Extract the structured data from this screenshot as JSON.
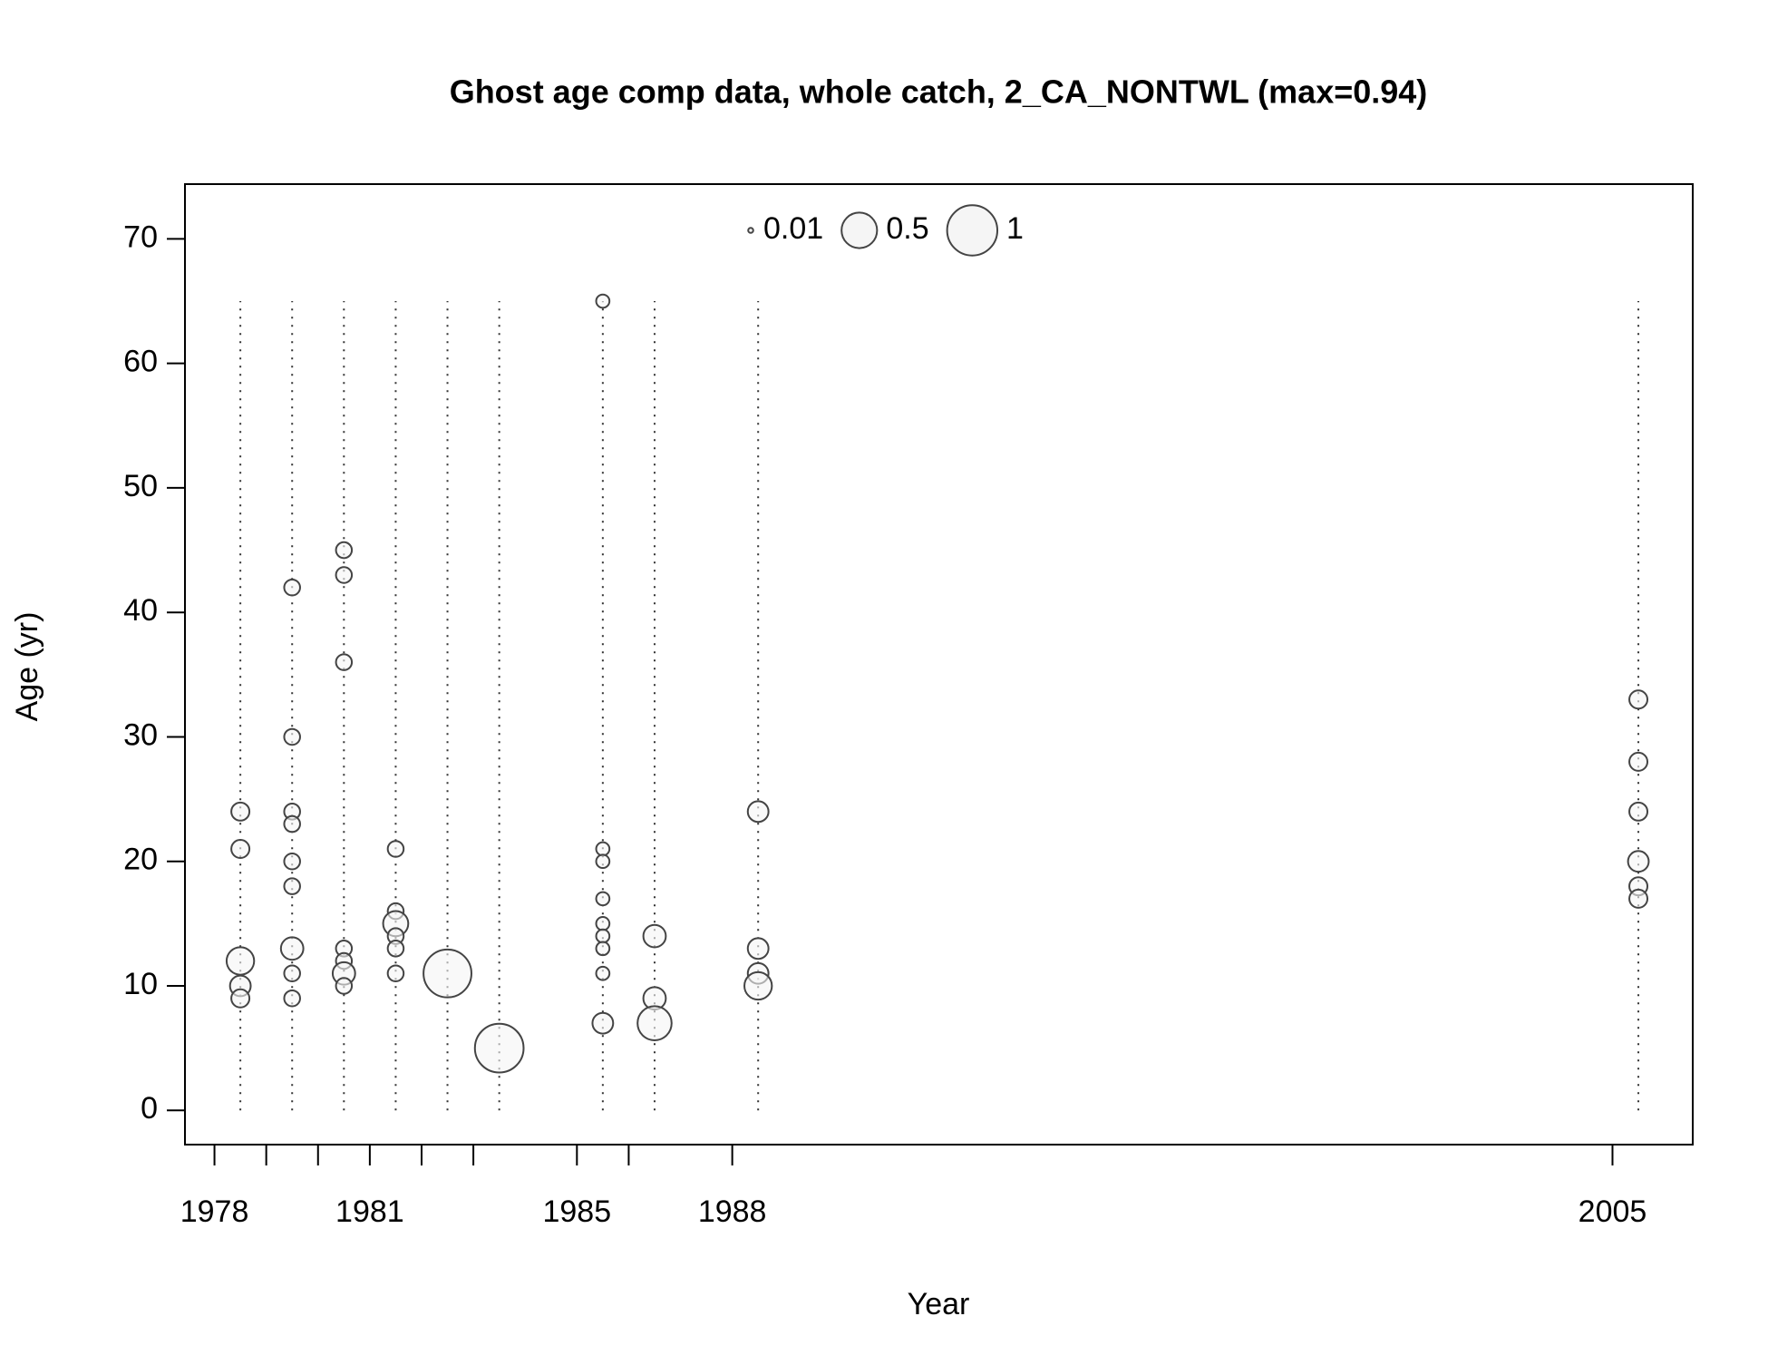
{
  "chart_data": {
    "type": "bubble",
    "title": "Ghost age comp data, whole catch, 2_CA_NONTWL (max=0.94)",
    "x_label": "Year",
    "y_label": "Age (yr)",
    "x": [
      1978.5,
      1978.5,
      1978.5,
      1978.5,
      1978.5,
      1979.5,
      1979.5,
      1979.5,
      1979.5,
      1979.5,
      1979.5,
      1979.5,
      1979.5,
      1979.5,
      1980.5,
      1980.5,
      1980.5,
      1980.5,
      1980.5,
      1980.5,
      1980.5,
      1981.5,
      1981.5,
      1981.5,
      1981.5,
      1981.5,
      1981.5,
      1982.5,
      1983.5,
      1985.5,
      1985.5,
      1985.5,
      1985.5,
      1985.5,
      1985.5,
      1985.5,
      1985.5,
      1985.5,
      1986.5,
      1986.5,
      1986.5,
      1988.5,
      1988.5,
      1988.5,
      1988.5,
      2005.5,
      2005.5,
      2005.5,
      2005.5,
      2005.5,
      2005.5
    ],
    "y": [
      24,
      21,
      12,
      10,
      9,
      42,
      30,
      24,
      23,
      20,
      18,
      13,
      11,
      9,
      45,
      43,
      36,
      13,
      12,
      11,
      10,
      21,
      16,
      15,
      14,
      13,
      11,
      11,
      5,
      65,
      21,
      20,
      17,
      15,
      14,
      13,
      11,
      7,
      14,
      9,
      7,
      24,
      13,
      11,
      10,
      33,
      28,
      24,
      20,
      18,
      17
    ],
    "sizes": [
      0.13,
      0.13,
      0.3,
      0.17,
      0.13,
      0.1,
      0.1,
      0.1,
      0.1,
      0.1,
      0.1,
      0.2,
      0.1,
      0.1,
      0.1,
      0.1,
      0.1,
      0.1,
      0.1,
      0.2,
      0.1,
      0.1,
      0.1,
      0.25,
      0.1,
      0.1,
      0.1,
      0.91,
      0.94,
      0.07,
      0.07,
      0.07,
      0.07,
      0.07,
      0.07,
      0.07,
      0.07,
      0.17,
      0.2,
      0.2,
      0.46,
      0.17,
      0.17,
      0.17,
      0.3,
      0.13,
      0.13,
      0.13,
      0.17,
      0.13,
      0.13
    ],
    "legend_sizes": [
      0.01,
      0.5,
      1
    ],
    "xlim": [
      1977.43,
      2006.55
    ],
    "ylim": [
      -2.75,
      74.4
    ],
    "xticks": [
      1978,
      1981,
      1985,
      1988,
      2005
    ],
    "xminor_ticks": [
      1979,
      1980,
      1982,
      1983,
      1986
    ],
    "yticks": [
      0,
      10,
      20,
      30,
      40,
      50,
      60,
      70
    ],
    "color": "#444444"
  }
}
